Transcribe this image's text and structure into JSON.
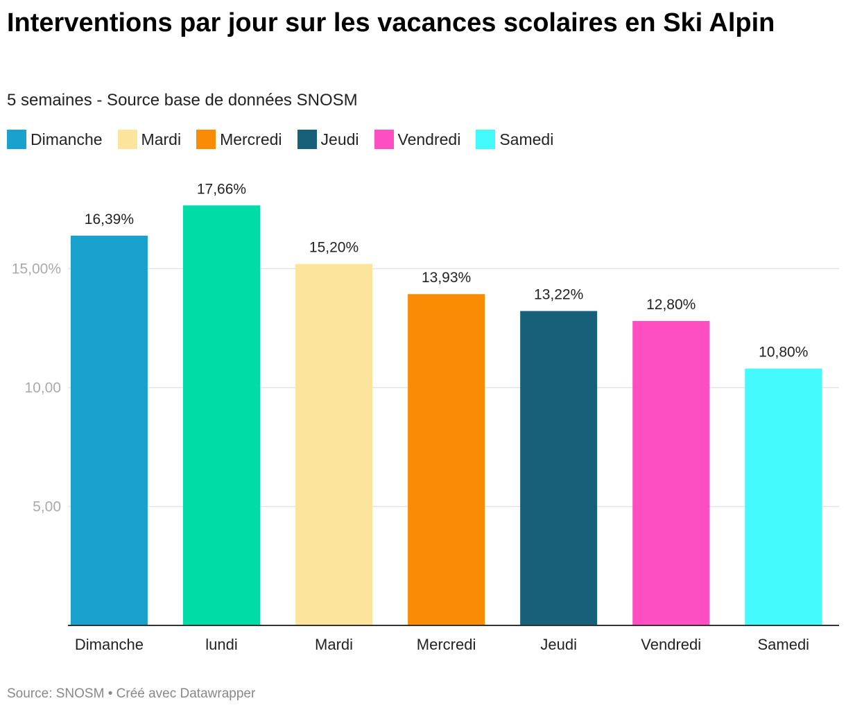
{
  "title": "Interventions par jour sur les vacances scolaires en Ski Alpin",
  "subtitle": "5 semaines - Source base de données SNOSM",
  "legend": [
    {
      "label": "Dimanche",
      "color": "#18a1cd"
    },
    {
      "label": "Mardi",
      "color": "#fde49c"
    },
    {
      "label": "Mercredi",
      "color": "#f98c04"
    },
    {
      "label": "Jeudi",
      "color": "#17607a"
    },
    {
      "label": "Vendredi",
      "color": "#fe4ec1"
    },
    {
      "label": "Samedi",
      "color": "#43f9fb"
    }
  ],
  "chart_data": {
    "type": "bar",
    "categories": [
      "Dimanche",
      "lundi",
      "Mardi",
      "Mercredi",
      "Jeudi",
      "Vendredi",
      "Samedi"
    ],
    "values": [
      16.39,
      17.66,
      15.2,
      13.93,
      13.22,
      12.8,
      10.8
    ],
    "value_labels": [
      "16,39%",
      "17,66%",
      "15,20%",
      "13,93%",
      "13,22%",
      "12,80%",
      "10,80%"
    ],
    "colors": [
      "#18a1cd",
      "#00dca5",
      "#fde49c",
      "#f98c04",
      "#17607a",
      "#fe4ec1",
      "#43f9fb"
    ],
    "y_ticks": [
      {
        "value": 5,
        "label": "5,00"
      },
      {
        "value": 10,
        "label": "10,00"
      },
      {
        "value": 15,
        "label": "15,00%"
      }
    ],
    "ylim": [
      0,
      18
    ],
    "grid": true,
    "legend_position": "top-left"
  },
  "footer": "Source: SNOSM • Créé avec Datawrapper"
}
